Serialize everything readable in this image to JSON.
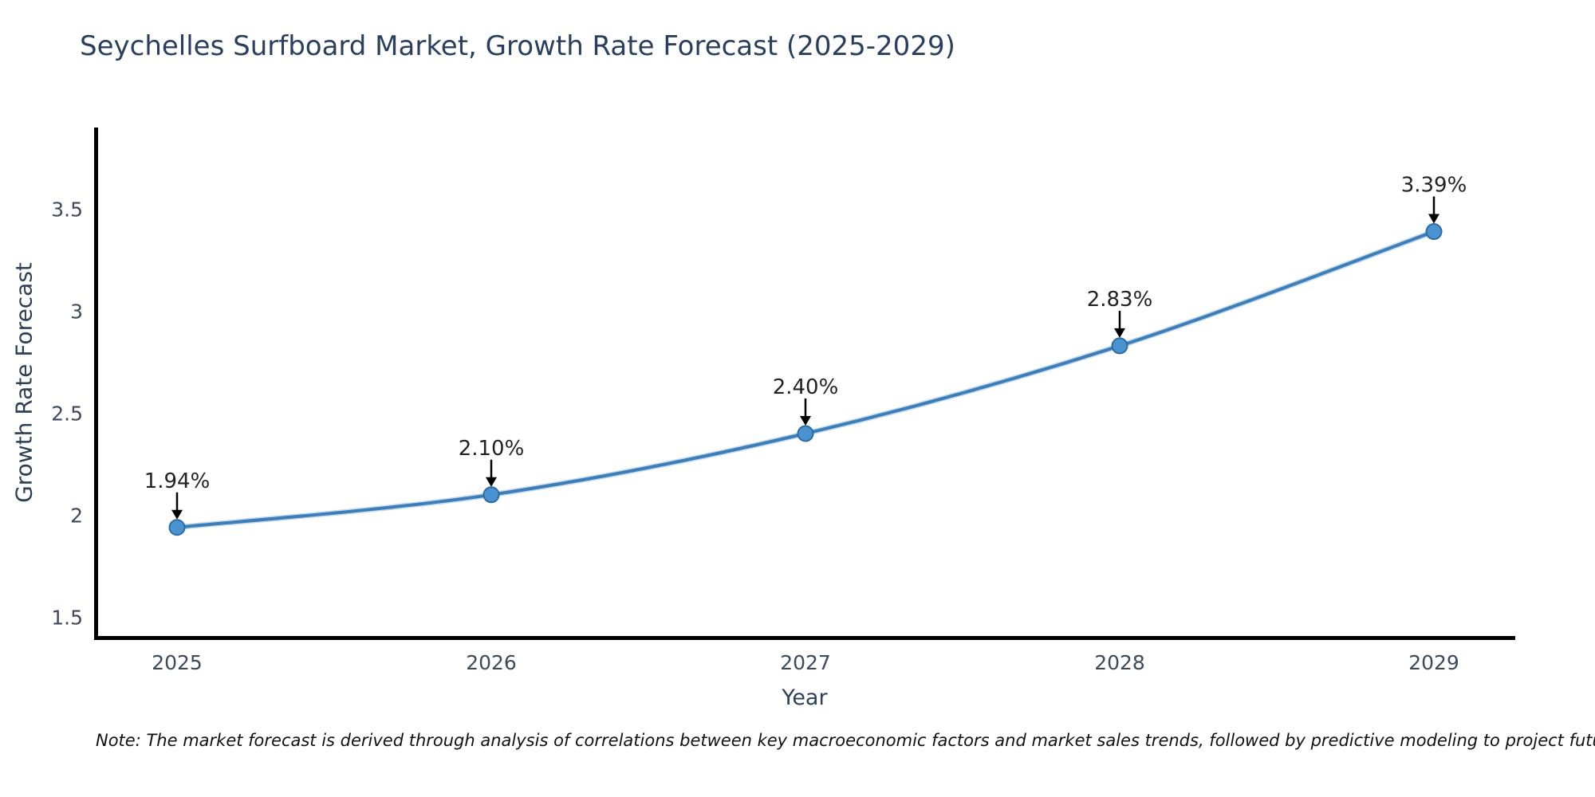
{
  "title": "Seychelles Surfboard Market, Growth Rate Forecast (2025-2029)",
  "note": "Note: The market forecast is derived through analysis of correlations between key macroeconomic factors and market sales trends, followed by predictive modeling to project future sales",
  "chart_data": {
    "type": "line",
    "title": "Seychelles Surfboard Market, Growth Rate Forecast (2025-2029)",
    "x": [
      "2025",
      "2026",
      "2027",
      "2028",
      "2029"
    ],
    "values": [
      1.94,
      2.1,
      2.4,
      2.83,
      3.39
    ],
    "point_labels": [
      "1.94%",
      "2.10%",
      "2.40%",
      "2.83%",
      "3.39%"
    ],
    "xlabel": "Year",
    "ylabel": "Growth Rate Forecast",
    "ylim": [
      1.4,
      3.9
    ],
    "yticks": [
      "1.5",
      "2",
      "2.5",
      "3",
      "3.5"
    ],
    "grid": false,
    "legend_position": "none",
    "line_color": "#3d7db8",
    "line_halo_color": "#8fbcdd",
    "marker_color": "#4b93d0",
    "marker_edge_color": "#2d6ba3",
    "annotation_color": "#222222",
    "arrow_color": "#000000",
    "axis_color": "#000000",
    "tick_color": "#3d4a5a"
  }
}
